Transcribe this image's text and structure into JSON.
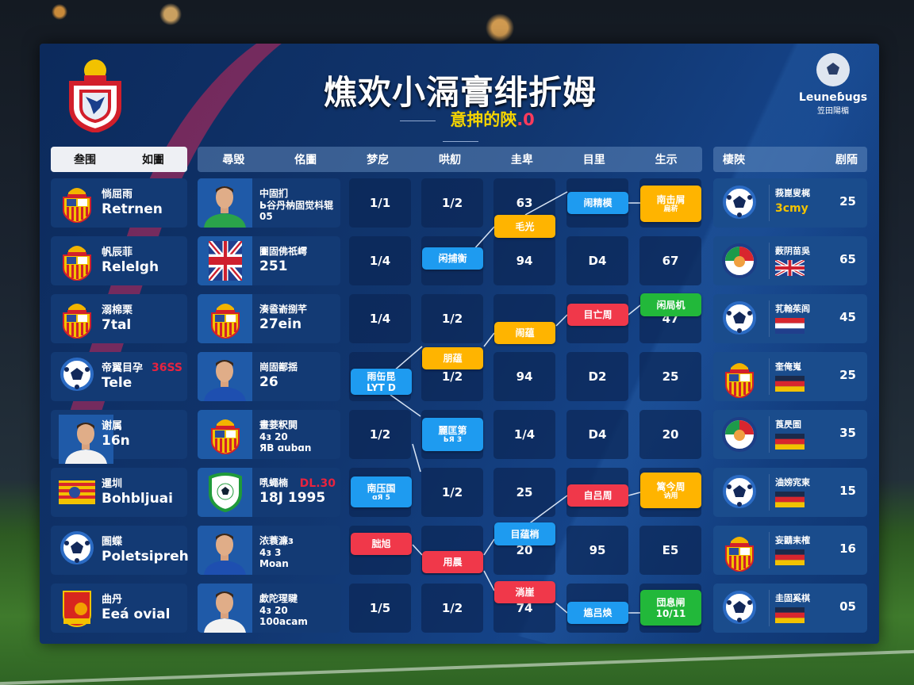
{
  "header": {
    "title": "燋欢小滆膏绯折姆",
    "subtitle_main": "意抻的陝",
    "subtitle_accent": ".0",
    "logo_text": "Leuneɓugs",
    "logo_sub": "笠田陽楣"
  },
  "columns": {
    "left": [
      "叁围",
      "如圕"
    ],
    "middle": [
      "尋毁",
      "佲圕",
      "梦戹",
      "哄舠",
      "圭卑",
      "目里",
      "生示"
    ],
    "right": [
      "棲陜",
      "剧陑"
    ]
  },
  "rows": [
    {
      "team": {
        "name": "惝屈雨",
        "sub": "Retrnen",
        "icon": "crest"
      },
      "player": {
        "name": "中固扪",
        "l1": "Ь谷丹枘固觉枓辊",
        "l2": "05",
        "icon": "photo-green"
      },
      "cells": [
        "1/1",
        "1/2",
        "63",
        "",
        ""
      ],
      "right": {
        "name": "莪崑叟梶",
        "flag": "3cmy",
        "flag_icon": "text",
        "value": "25",
        "icon": "ball"
      }
    },
    {
      "team": {
        "name": "帆辰菲",
        "sub": "Relelgh",
        "icon": "crest"
      },
      "player": {
        "name": "圕固佛祇嶀",
        "l1": "251",
        "l2": "",
        "icon": "flag-uk"
      },
      "cells": [
        "1/4",
        "",
        "94",
        "D4",
        "67"
      ],
      "right": {
        "name": "薮阴苗吳",
        "flag_icon": "flag-uk",
        "value": "65",
        "icon": "ring"
      }
    },
    {
      "team": {
        "name": "溺棉栗",
        "sub": "7tal",
        "icon": "crest"
      },
      "player": {
        "name": "湊巹嵛捌芊",
        "l1": "27ein",
        "l2": "",
        "icon": "crest"
      },
      "cells": [
        "1/4",
        "1/2",
        "",
        "",
        "47"
      ],
      "right": {
        "name": "芤翰茱闾",
        "flag_icon": "flag-nl",
        "value": "45",
        "icon": "ball"
      }
    },
    {
      "team": {
        "name": "帝翼目孕",
        "sub": "Tele",
        "icon": "ball",
        "tag": "36SS"
      },
      "player": {
        "name": "崗固鄯揺",
        "l1": "26",
        "l2": "",
        "icon": "photo-blue"
      },
      "cells": [
        "",
        "1/2",
        "94",
        "D2",
        "25"
      ],
      "right": {
        "name": "奎俺嵬",
        "flag_icon": "flag-es",
        "value": "25",
        "icon": "crest"
      }
    },
    {
      "team": {
        "name": "谢属",
        "sub": "16n",
        "icon": "photo-white"
      },
      "player": {
        "name": "畫菨粎閧",
        "l1": "4ɜ 20",
        "l2": "ЯB ɑubɑn",
        "icon": "crest"
      },
      "cells": [
        "1/2",
        "",
        "1/4",
        "D4",
        "20"
      ],
      "right": {
        "name": "莨昃圄",
        "flag_icon": "flag-es",
        "value": "35",
        "icon": "ring"
      }
    },
    {
      "team": {
        "name": "暹圳",
        "sub": "Bohbljuai",
        "icon": "stripes"
      },
      "player": {
        "name": "啂蠅楠",
        "l1": "18J 1995",
        "l2": "",
        "icon": "shield-green",
        "tag": "DL.30"
      },
      "cells": [
        "",
        "1/2",
        "25",
        "",
        ""
      ],
      "right": {
        "name": "浀嫎宨柬",
        "flag_icon": "flag-es",
        "value": "15",
        "icon": "ball"
      }
    },
    {
      "team": {
        "name": "圄蝶",
        "sub": "Poletsipreh",
        "icon": "ball"
      },
      "player": {
        "name": "浓蓑濂з",
        "l1": "4ɜ 3",
        "l2": "Moan",
        "icon": "photo-blue"
      },
      "cells": [
        "",
        "",
        "20",
        "95",
        "E5"
      ],
      "right": {
        "name": "妄鼱耒榷",
        "flag_icon": "flag-es",
        "value": "16",
        "icon": "crest"
      }
    },
    {
      "team": {
        "name": "曲丹",
        "sub": "Eeá ovial",
        "icon": "red-crest"
      },
      "player": {
        "name": "歔陀瑆睷",
        "l1": "4ɜ 20",
        "l2": "100acam",
        "icon": "photo-white"
      },
      "cells": [
        "1/5",
        "1/2",
        "74",
        "",
        ""
      ],
      "right": {
        "name": "圭固奚棋",
        "flag_icon": "flag-es",
        "value": "05",
        "icon": "ball"
      }
    }
  ],
  "bracket": [
    {
      "l1": "闹精模",
      "color": "#1e9bf0"
    },
    {
      "l1": "南击屑",
      "l2": "扁菥",
      "color": "#ffb400"
    },
    {
      "l1": "毛光",
      "color": "#ffb400"
    },
    {
      "l1": "闲捕衡",
      "color": "#1e9bf0"
    },
    {
      "l1": "目亡周",
      "color": "#f0384a"
    },
    {
      "l1": "闲局机",
      "color": "#22b83a"
    },
    {
      "l1": "闹蕴",
      "color": "#ffb400"
    },
    {
      "l1": "朋蕴",
      "color": "#ffb400"
    },
    {
      "l1": "雨缶昆",
      "l2": "LYT D",
      "color": "#1e9bf0"
    },
    {
      "l1": "麗匡第",
      "l2": "ЬЯ 3",
      "color": "#1e9bf0"
    },
    {
      "l1": "南压国",
      "l2": "ɑЯ 5",
      "color": "#1e9bf0"
    },
    {
      "l1": "自吕周",
      "color": "#f0384a"
    },
    {
      "l1": "篱今周",
      "l2": "讷用",
      "color": "#ffb400"
    },
    {
      "l1": "目蕴梢",
      "color": "#1e9bf0"
    },
    {
      "l1": "朏旭",
      "color": "#f0384a"
    },
    {
      "l1": "用晨",
      "color": "#f0384a"
    },
    {
      "l1": "淌崖",
      "color": "#f0384a"
    },
    {
      "l1": "尴吕焕",
      "color": "#1e9bf0"
    },
    {
      "l1": "団息闸",
      "l2": "10/11",
      "color": "#22b83a"
    }
  ]
}
